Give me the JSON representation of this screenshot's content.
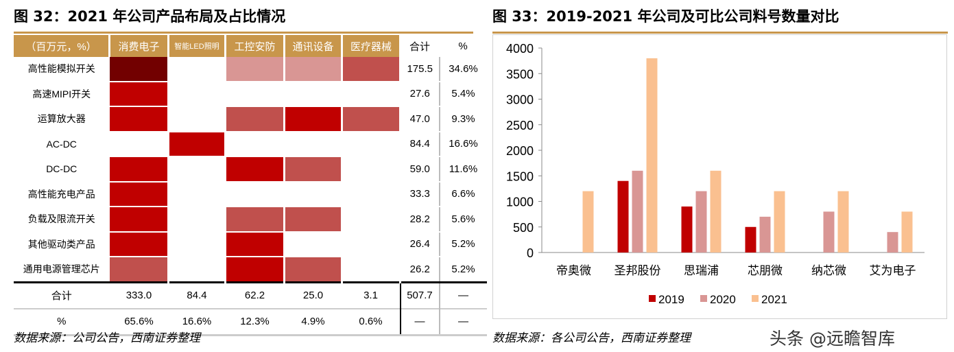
{
  "left": {
    "title": "图 32：2021 年公司产品布局及占比情况",
    "source": "数据来源：公司公告，西南证券整理",
    "headers": [
      "（百万元，%）",
      "消费电子",
      "智能LED照明",
      "工控安防",
      "通讯设备",
      "医疗器械",
      "合计",
      "%"
    ],
    "colors": {
      "dark": "#720000",
      "red": "#c00000",
      "mid": "#c0504d",
      "light": "#d99694",
      "none": "#ffffff"
    },
    "rows": [
      {
        "label": "高性能模拟开关",
        "cells": [
          "dark",
          "none",
          "light",
          "light",
          "mid"
        ],
        "total": "175.5",
        "pct": "34.6%"
      },
      {
        "label": "高速MIPI开关",
        "cells": [
          "red",
          "none",
          "none",
          "none",
          "none"
        ],
        "total": "27.6",
        "pct": "5.4%"
      },
      {
        "label": "运算放大器",
        "cells": [
          "red",
          "none",
          "mid",
          "red",
          "mid"
        ],
        "total": "47.0",
        "pct": "9.3%"
      },
      {
        "label": "AC-DC",
        "cells": [
          "none",
          "red",
          "none",
          "none",
          "none"
        ],
        "total": "84.4",
        "pct": "16.6%"
      },
      {
        "label": "DC-DC",
        "cells": [
          "red",
          "none",
          "red",
          "mid",
          "none"
        ],
        "total": "59.0",
        "pct": "11.6%"
      },
      {
        "label": "高性能充电产品",
        "cells": [
          "red",
          "none",
          "none",
          "none",
          "none"
        ],
        "total": "33.3",
        "pct": "6.6%"
      },
      {
        "label": "负载及限流开关",
        "cells": [
          "red",
          "none",
          "mid",
          "mid",
          "none"
        ],
        "total": "28.2",
        "pct": "5.6%"
      },
      {
        "label": "其他驱动类产品",
        "cells": [
          "red",
          "none",
          "red",
          "none",
          "none"
        ],
        "total": "26.4",
        "pct": "5.2%"
      },
      {
        "label": "通用电源管理芯片",
        "cells": [
          "mid",
          "none",
          "red",
          "mid",
          "none"
        ],
        "total": "26.2",
        "pct": "5.2%"
      }
    ],
    "sum": [
      "合计",
      "333.0",
      "84.4",
      "62.2",
      "25.0",
      "3.1",
      "507.7",
      "—"
    ],
    "pct": [
      "%",
      "65.6%",
      "16.6%",
      "12.3%",
      "4.9%",
      "0.6%",
      "—",
      "—"
    ]
  },
  "right": {
    "title": "图 33：2019-2021 年公司及可比公司料号数量对比",
    "source": "数据来源：各公司公告，西南证券整理"
  },
  "watermark": "头条 @远瞻智库",
  "chart_data": {
    "type": "bar",
    "title": "2019-2021 年公司及可比公司料号数量对比",
    "categories": [
      "帝奥微",
      "圣邦股份",
      "思瑞浦",
      "芯朋微",
      "纳芯微",
      "艾为电子"
    ],
    "series": [
      {
        "name": "2019",
        "color": "#c00000",
        "values": [
          0,
          1400,
          900,
          500,
          0,
          0
        ]
      },
      {
        "name": "2020",
        "color": "#d99694",
        "values": [
          0,
          1600,
          1200,
          700,
          800,
          400
        ]
      },
      {
        "name": "2021",
        "color": "#fac090",
        "values": [
          1200,
          3800,
          1600,
          1200,
          1200,
          800
        ]
      }
    ],
    "ylim": [
      0,
      4000
    ],
    "yticks": [
      0,
      500,
      1000,
      1500,
      2000,
      2500,
      3000,
      3500,
      4000
    ],
    "legend": "bottom"
  }
}
